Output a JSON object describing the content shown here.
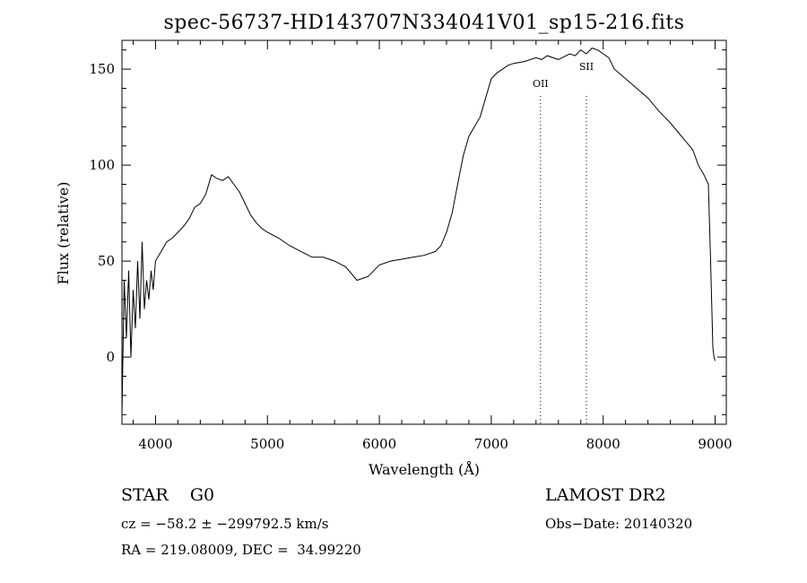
{
  "chart_data": {
    "type": "line",
    "title": "spec-56737-HD143707N334041V01_sp15-216.fits",
    "xlabel": "Wavelength (Å)",
    "ylabel": "Flux (relative)",
    "xlim": [
      3700,
      9100
    ],
    "ylim": [
      -35,
      165
    ],
    "x_ticks": [
      4000,
      5000,
      6000,
      7000,
      8000,
      9000
    ],
    "y_ticks": [
      0,
      50,
      100,
      150
    ],
    "grid": false,
    "series": [
      {
        "x": [
          3700,
          3720,
          3740,
          3760,
          3780,
          3800,
          3820,
          3840,
          3860,
          3880,
          3900,
          3920,
          3940,
          3960,
          3980,
          4000,
          4050,
          4100,
          4150,
          4200,
          4250,
          4300,
          4350,
          4400,
          4450,
          4500,
          4550,
          4600,
          4650,
          4700,
          4750,
          4800,
          4850,
          4900,
          4950,
          5000,
          5100,
          5200,
          5300,
          5400,
          5500,
          5600,
          5700,
          5800,
          5850,
          5900,
          5950,
          6000,
          6100,
          6200,
          6300,
          6400,
          6500,
          6550,
          6600,
          6650,
          6700,
          6750,
          6800,
          6850,
          6900,
          6950,
          7000,
          7050,
          7100,
          7150,
          7200,
          7300,
          7400,
          7450,
          7500,
          7600,
          7700,
          7750,
          7800,
          7850,
          7900,
          7950,
          8000,
          8050,
          8100,
          8200,
          8300,
          8400,
          8500,
          8600,
          8700,
          8800,
          8850,
          8900,
          8940,
          8960,
          8980,
          8990,
          9000
        ],
        "y": [
          -30,
          40,
          10,
          45,
          0,
          35,
          15,
          50,
          20,
          60,
          25,
          40,
          30,
          45,
          35,
          50,
          55,
          60,
          62,
          65,
          68,
          72,
          78,
          80,
          85,
          95,
          93,
          92,
          94,
          90,
          86,
          80,
          74,
          70,
          67,
          65,
          62,
          58,
          55,
          52,
          52,
          50,
          47,
          40,
          41,
          42,
          45,
          48,
          50,
          51,
          52,
          53,
          55,
          58,
          65,
          75,
          90,
          105,
          115,
          120,
          125,
          135,
          145,
          148,
          150,
          152,
          153,
          154,
          156,
          155,
          157,
          155,
          158,
          157,
          160,
          158,
          161,
          160,
          158,
          156,
          150,
          145,
          140,
          135,
          128,
          122,
          115,
          108,
          100,
          95,
          90,
          50,
          5,
          0,
          -2
        ]
      }
    ],
    "line_markers": [
      {
        "x": 7440,
        "label": "OII"
      },
      {
        "x": 7850,
        "label": "SII"
      }
    ]
  },
  "info": {
    "object": "STAR    G0",
    "survey": "LAMOST DR2",
    "cz": "cz = −58.2 ± −299792.5 km/s",
    "obs_date": "Obs−Date: 20140320",
    "coords": "RA = 219.08009, DEC =  34.99220"
  }
}
